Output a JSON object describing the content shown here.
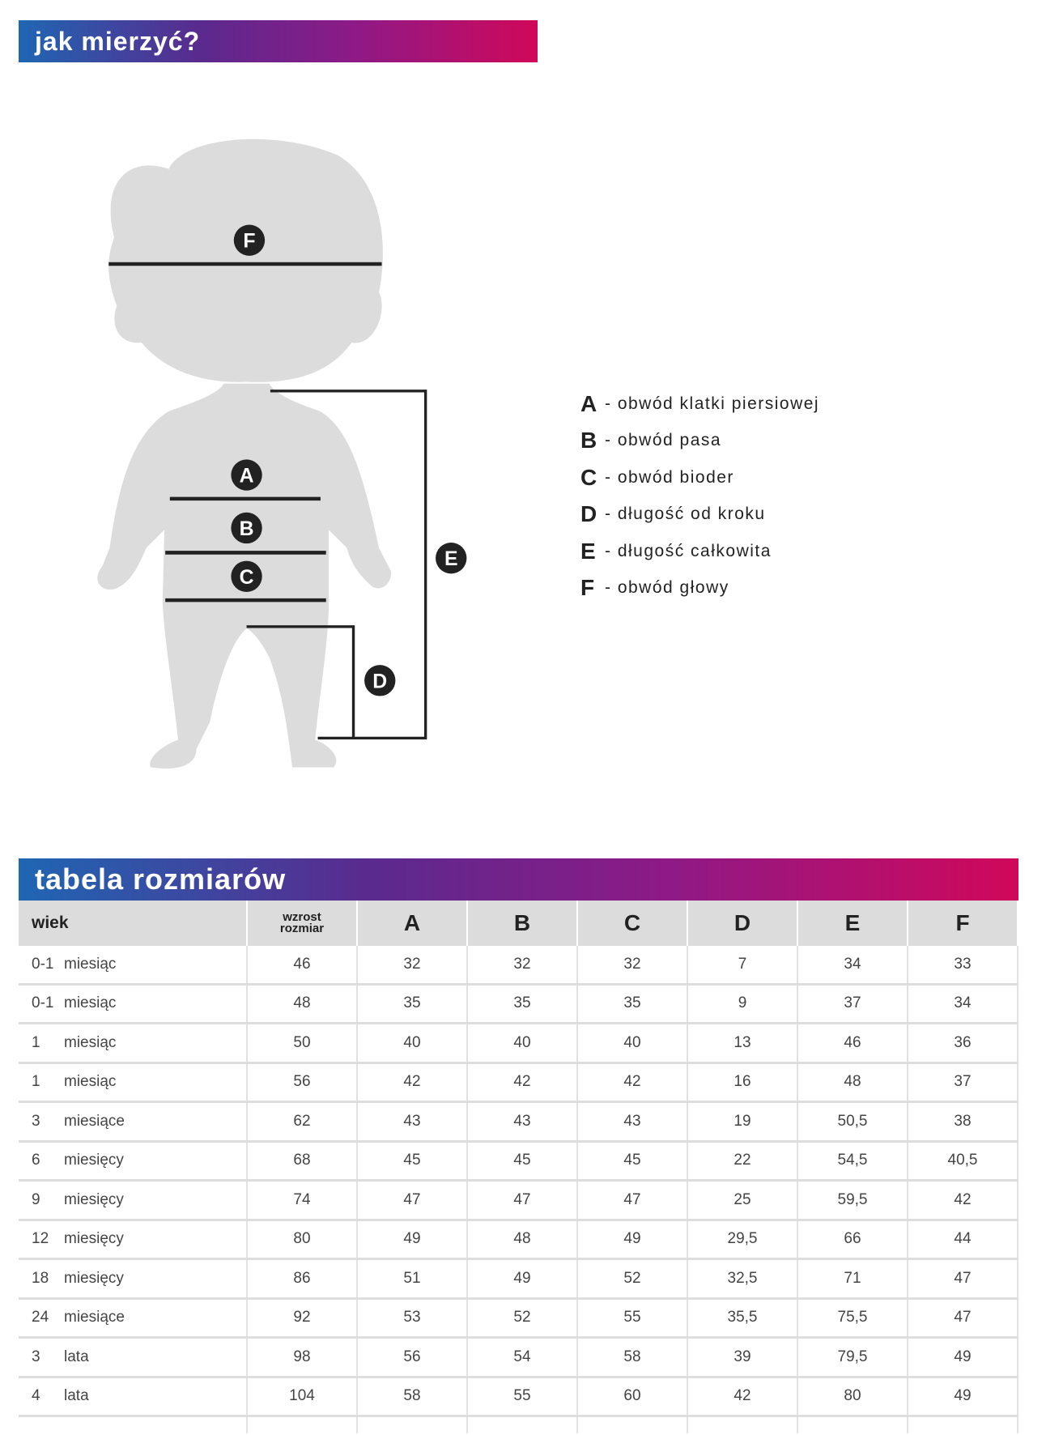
{
  "header": {
    "title": "Jak mierzyć?"
  },
  "figure": {
    "markers": [
      "F",
      "A",
      "B",
      "C",
      "D",
      "E"
    ],
    "silhouette_color": "#dcdcdc",
    "line_color": "#222222"
  },
  "legend": [
    {
      "key": "A",
      "label": "- obwód klatki piersiowej"
    },
    {
      "key": "B",
      "label": "- obwód pasa"
    },
    {
      "key": "C",
      "label": "- obwód bioder"
    },
    {
      "key": "D",
      "label": "- długość od kroku"
    },
    {
      "key": "E",
      "label": "- długość całkowita"
    },
    {
      "key": "F",
      "label": "- obwód głowy"
    }
  ],
  "table": {
    "title": "Tabela rozmiarów",
    "headers": {
      "wiek": "wiek",
      "wzrost_1": "wzrost",
      "wzrost_2": "rozmiar",
      "cols": [
        "A",
        "B",
        "C",
        "D",
        "E",
        "F"
      ]
    },
    "rows": [
      {
        "n": "0-1",
        "unit": "miesiąc",
        "size": "46",
        "vals": [
          "32",
          "32",
          "32",
          "7",
          "34",
          "33"
        ]
      },
      {
        "n": "0-1",
        "unit": "miesiąc",
        "size": "48",
        "vals": [
          "35",
          "35",
          "35",
          "9",
          "37",
          "34"
        ]
      },
      {
        "n": "1",
        "unit": "miesiąc",
        "size": "50",
        "vals": [
          "40",
          "40",
          "40",
          "13",
          "46",
          "36"
        ]
      },
      {
        "n": "1",
        "unit": "miesiąc",
        "size": "56",
        "vals": [
          "42",
          "42",
          "42",
          "16",
          "48",
          "37"
        ]
      },
      {
        "n": "3",
        "unit": "miesiące",
        "size": "62",
        "vals": [
          "43",
          "43",
          "43",
          "19",
          "50,5",
          "38"
        ]
      },
      {
        "n": "6",
        "unit": "miesięcy",
        "size": "68",
        "vals": [
          "45",
          "45",
          "45",
          "22",
          "54,5",
          "40,5"
        ]
      },
      {
        "n": "9",
        "unit": "miesięcy",
        "size": "74",
        "vals": [
          "47",
          "47",
          "47",
          "25",
          "59,5",
          "42"
        ]
      },
      {
        "n": "12",
        "unit": "miesięcy",
        "size": "80",
        "vals": [
          "49",
          "48",
          "49",
          "29,5",
          "66",
          "44"
        ]
      },
      {
        "n": "18",
        "unit": "miesięcy",
        "size": "86",
        "vals": [
          "51",
          "49",
          "52",
          "32,5",
          "71",
          "47"
        ]
      },
      {
        "n": "24",
        "unit": "miesiące",
        "size": "92",
        "vals": [
          "53",
          "52",
          "55",
          "35,5",
          "75,5",
          "47"
        ]
      },
      {
        "n": "3",
        "unit": "lata",
        "size": "98",
        "vals": [
          "56",
          "54",
          "58",
          "39",
          "79,5",
          "49"
        ]
      },
      {
        "n": "4",
        "unit": "lata",
        "size": "104",
        "vals": [
          "58",
          "55",
          "60",
          "42",
          "80",
          "49"
        ]
      }
    ]
  }
}
